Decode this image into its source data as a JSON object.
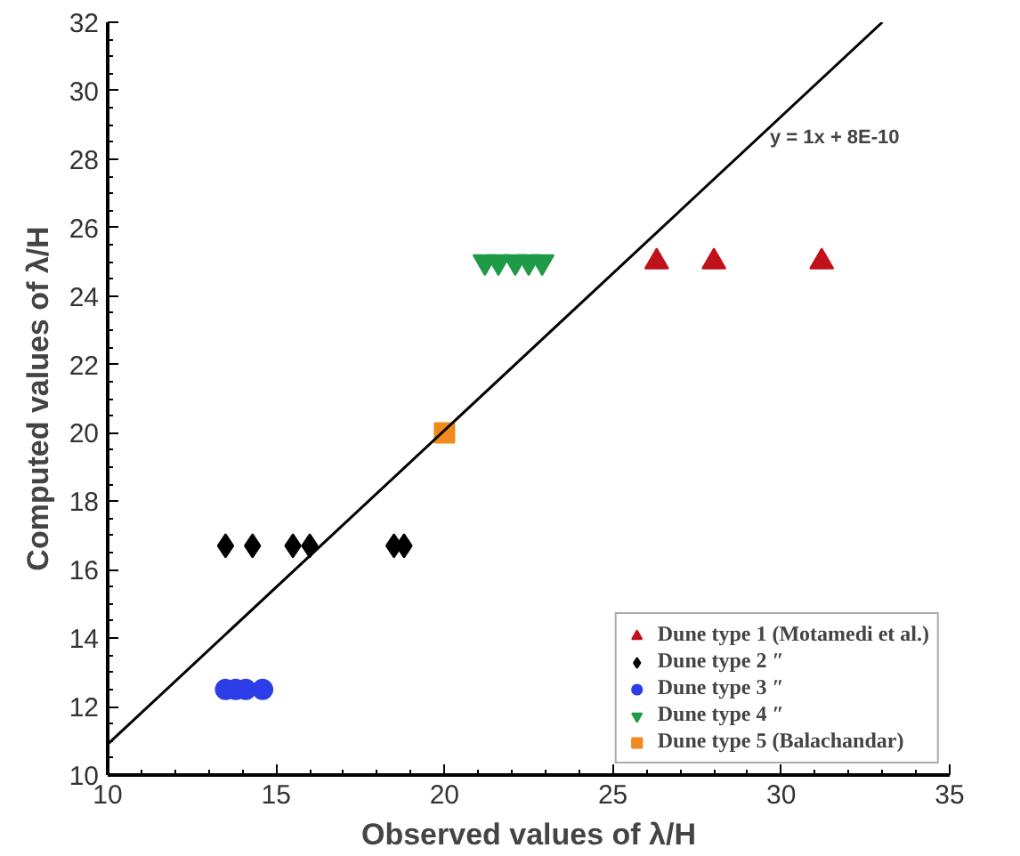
{
  "chart_data": {
    "type": "scatter",
    "xlabel": "Observed values of λ/H",
    "ylabel": "Computed values of λ/H",
    "xlim": [
      10,
      35
    ],
    "xticks": [
      10,
      15,
      20,
      25,
      30,
      35
    ],
    "ylim": [
      10,
      32
    ],
    "yticks": [
      10,
      12,
      14,
      16,
      18,
      20,
      22,
      24,
      26,
      28,
      30,
      32
    ],
    "grid": false,
    "legend": "bottom right",
    "series": [
      {
        "name": "Dune type 1 (Motamedi et al.)",
        "color": "#c0121b",
        "marker": "triangle",
        "x": [
          26.3,
          28,
          31.2
        ],
        "values": [
          25,
          25,
          25
        ]
      },
      {
        "name": "Dune type 2 ″",
        "color": "#000000",
        "marker": "diamond",
        "x": [
          13.5,
          14.3,
          15.5,
          16,
          18.5,
          18.8
        ],
        "values": [
          16.7,
          16.7,
          16.7,
          16.7,
          16.7,
          16.7
        ]
      },
      {
        "name": "Dune type 3 ″",
        "color": "#2b3ee8",
        "marker": "circle",
        "x": [
          13.5,
          13.8,
          14.1,
          14.6
        ],
        "values": [
          12.5,
          12.5,
          12.5,
          12.5
        ]
      },
      {
        "name": "Dune type 4 ″",
        "color": "#1f9a46",
        "x": [
          21.2,
          21.6,
          22.1,
          22.5,
          22.9
        ],
        "values": [
          25,
          25,
          25,
          25,
          25
        ]
      },
      {
        "name": "Dune type 5 (Balachandar)",
        "color": "#f08a1c",
        "marker": "square",
        "x": [
          20
        ],
        "values": [
          20
        ]
      },
      {
        "type": "line",
        "color": "#000000",
        "x": [
          10,
          33
        ],
        "values": [
          10.9,
          32
        ]
      }
    ],
    "annotations": [
      "y = 1x + 8E-10"
    ]
  }
}
